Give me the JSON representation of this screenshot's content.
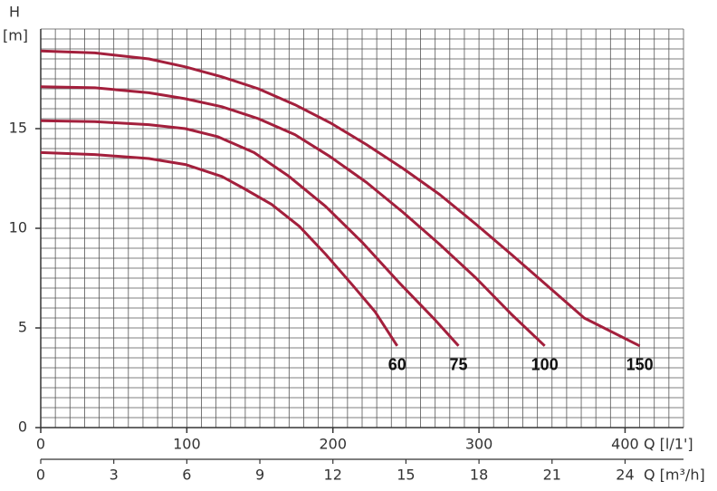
{
  "chart_data": {
    "type": "line",
    "y_label": "H",
    "y_unit": "[m]",
    "x_label": "Q [l/1']",
    "x2_label": "Q [m³/h]",
    "xlim": [
      0,
      440
    ],
    "xticks": [
      0,
      100,
      200,
      300,
      400
    ],
    "x2lim": [
      0,
      26.4
    ],
    "x2ticks": [
      0,
      3,
      6,
      9,
      12,
      15,
      18,
      21,
      24
    ],
    "ylim": [
      0,
      20
    ],
    "yticks": [
      0,
      5,
      10,
      15
    ],
    "grid": true,
    "series": [
      {
        "name": "60",
        "color": "#a31f3c",
        "x": [
          0,
          37,
          74,
          99,
          124,
          139,
          158,
          177,
          195,
          214,
          229,
          244
        ],
        "values": [
          13.8,
          13.7,
          13.5,
          13.2,
          12.6,
          12.0,
          11.2,
          10.1,
          8.7,
          7.1,
          5.8,
          4.1
        ]
      },
      {
        "name": "75",
        "color": "#a31f3c",
        "x": [
          0,
          37,
          74,
          99,
          121,
          146,
          170,
          195,
          220,
          245,
          270,
          286
        ],
        "values": [
          15.4,
          15.35,
          15.2,
          15.0,
          14.6,
          13.8,
          12.6,
          11.1,
          9.3,
          7.3,
          5.4,
          4.1
        ]
      },
      {
        "name": "100",
        "color": "#a31f3c",
        "x": [
          0,
          37,
          74,
          99,
          124,
          149,
          174,
          198,
          223,
          248,
          273,
          298,
          322,
          345
        ],
        "values": [
          17.1,
          17.05,
          16.8,
          16.5,
          16.1,
          15.5,
          14.7,
          13.6,
          12.3,
          10.8,
          9.2,
          7.5,
          5.7,
          4.1
        ]
      },
      {
        "name": "150",
        "color": "#a31f3c",
        "x": [
          0,
          37,
          74,
          99,
          124,
          149,
          174,
          198,
          223,
          248,
          273,
          298,
          322,
          347,
          372,
          410
        ],
        "values": [
          18.9,
          18.8,
          18.5,
          18.1,
          17.6,
          17.0,
          16.2,
          15.3,
          14.2,
          13.0,
          11.7,
          10.2,
          8.7,
          7.1,
          5.5,
          4.1
        ]
      }
    ]
  }
}
